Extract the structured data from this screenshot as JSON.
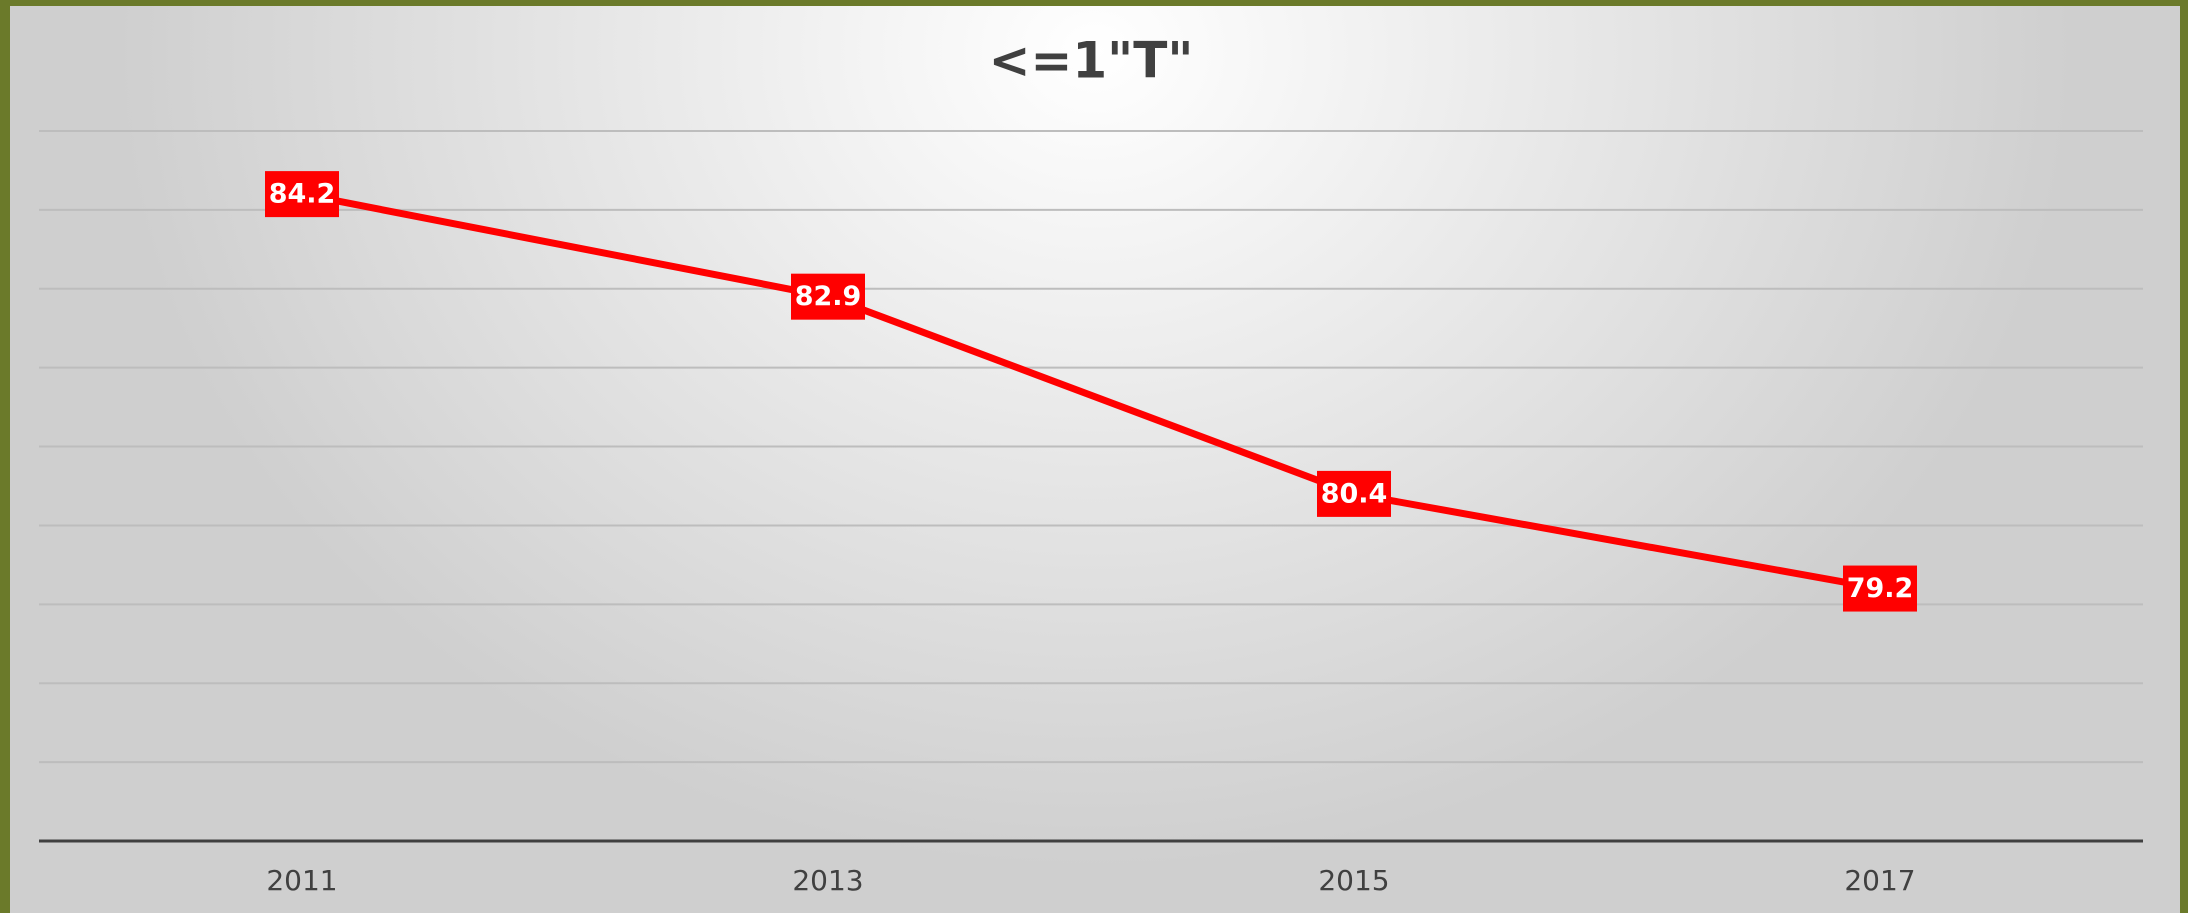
{
  "chart_data": {
    "type": "line",
    "title": "<=1\"T\"",
    "categories": [
      "2011",
      "2013",
      "2015",
      "2017"
    ],
    "series": [
      {
        "name": "<=1\"T\"",
        "color": "#ff0000",
        "values": [
          84.2,
          82.9,
          80.4,
          79.2
        ]
      }
    ],
    "ylim": [
      76,
      85
    ],
    "yticks": [
      76,
      77,
      78,
      79,
      80,
      81,
      82,
      83,
      84,
      85
    ],
    "ytick_labels": false,
    "grid": true,
    "legend": false,
    "data_labels": true
  }
}
